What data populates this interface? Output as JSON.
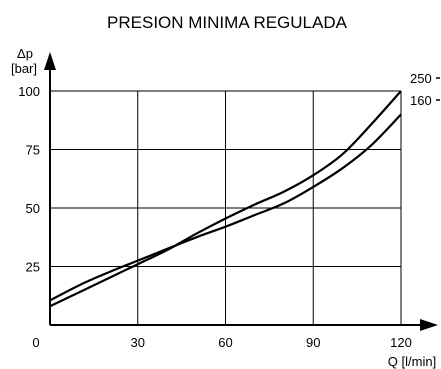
{
  "chart_data": {
    "type": "line",
    "title": "PRESION MINIMA REGULADA",
    "ylabel_line1": "Δp",
    "ylabel_line2": "[bar]",
    "xlabel": "Q [l/min]",
    "xlim": [
      0,
      120
    ],
    "ylim": [
      0,
      100
    ],
    "x_ticks": [
      0,
      30,
      60,
      90,
      120
    ],
    "y_ticks": [
      25,
      50,
      75,
      100
    ],
    "grid": true,
    "series": [
      {
        "name": "250",
        "x": [
          0,
          10,
          20,
          30,
          40,
          50,
          60,
          70,
          80,
          90,
          100,
          110,
          120
        ],
        "y": [
          8,
          14,
          20,
          26,
          32,
          39,
          45.5,
          51.5,
          57,
          64,
          73,
          86,
          100
        ]
      },
      {
        "name": "160",
        "x": [
          0,
          10,
          20,
          30,
          40,
          50,
          60,
          70,
          80,
          90,
          100,
          110,
          120
        ],
        "y": [
          10.5,
          17,
          22.5,
          27.5,
          32.5,
          37.5,
          42,
          47,
          52,
          59,
          67,
          77,
          90
        ]
      }
    ]
  }
}
